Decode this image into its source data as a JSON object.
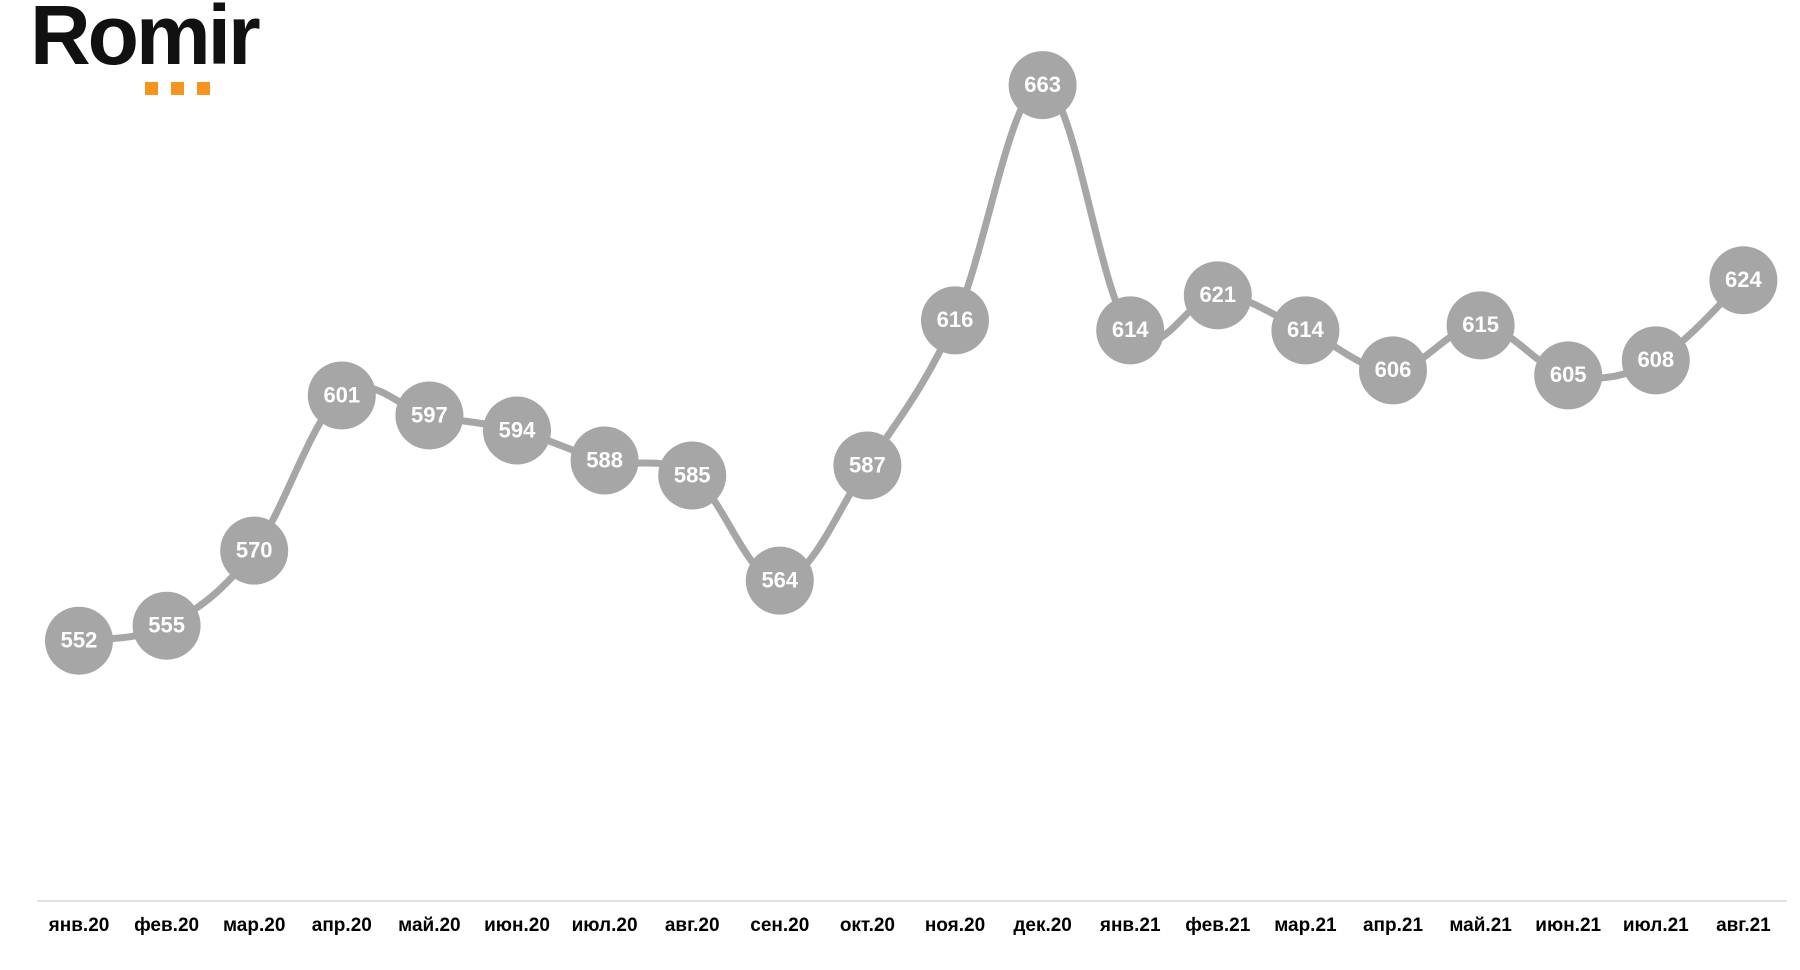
{
  "logo": "Romir",
  "chart_data": {
    "type": "line",
    "categories": [
      "янв.20",
      "фев.20",
      "мар.20",
      "апр.20",
      "май.20",
      "июн.20",
      "июл.20",
      "авг.20",
      "сен.20",
      "окт.20",
      "ноя.20",
      "дек.20",
      "янв.21",
      "фев.21",
      "мар.21",
      "апр.21",
      "май.21",
      "июн.21",
      "июл.21",
      "авг.21"
    ],
    "series": [
      {
        "name": null,
        "color": "#a6a6a6",
        "values": [
          552,
          555,
          570,
          601,
          597,
          594,
          588,
          585,
          564,
          587,
          616,
          663,
          614,
          621,
          614,
          606,
          615,
          605,
          608,
          624
        ]
      }
    ],
    "ylim": [
      500,
      680
    ]
  }
}
